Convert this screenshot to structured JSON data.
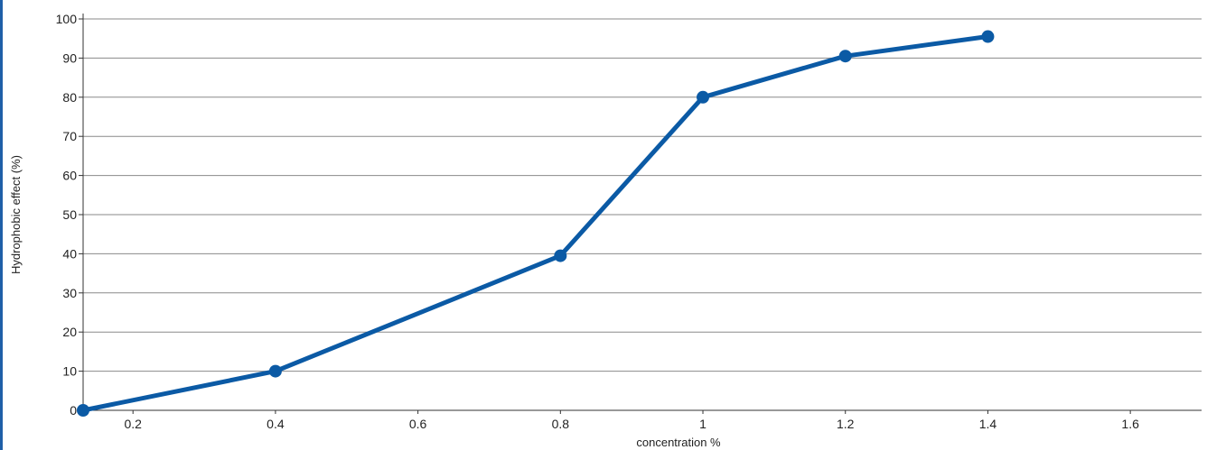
{
  "chart_data": {
    "type": "line",
    "title": "",
    "xlabel": "concentration %",
    "ylabel": "Hydrophobic effect (%)",
    "xlim": [
      0.13,
      1.7
    ],
    "ylim": [
      0,
      100
    ],
    "x_ticks": [
      0.2,
      0.4,
      0.6,
      0.8,
      1,
      1.2,
      1.4,
      1.6
    ],
    "y_ticks": [
      0,
      10,
      20,
      30,
      40,
      50,
      60,
      70,
      80,
      90,
      100
    ],
    "grid": "horizontal",
    "legend": "none",
    "series": [
      {
        "x": [
          0.13,
          0.4,
          0.8,
          1.0,
          1.2,
          1.4
        ],
        "y": [
          0,
          10,
          39.5,
          80,
          90.5,
          95.5
        ],
        "color": "#0b5aa5",
        "marker": "circle"
      }
    ]
  }
}
